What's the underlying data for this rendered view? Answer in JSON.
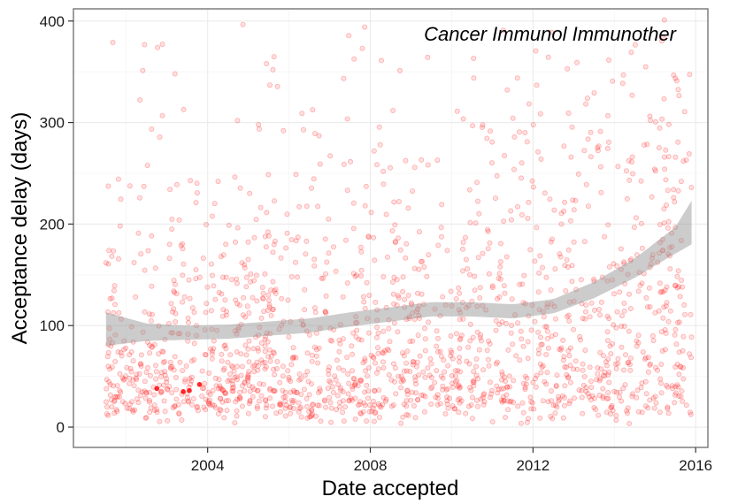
{
  "chart_data": {
    "type": "scatter",
    "title": "Cancer Immunol Immunother",
    "xlabel": "Date accepted",
    "ylabel": "Acceptance delay (days)",
    "x_ticks": [
      "2004",
      "2008",
      "2012",
      "2016"
    ],
    "y_ticks": [
      "0",
      "100",
      "200",
      "300",
      "400"
    ],
    "xlim": [
      2000.7,
      2016.3
    ],
    "ylim": [
      -20,
      412
    ],
    "grid": true,
    "point_color": "#ff0000",
    "point_count_estimate": 1800,
    "highlighted_points": [
      {
        "x": 2002.75,
        "y": 38
      },
      {
        "x": 2003.4,
        "y": 35
      },
      {
        "x": 2003.55,
        "y": 36
      },
      {
        "x": 2003.8,
        "y": 42
      }
    ],
    "series": [
      {
        "type": "smooth",
        "color": "#999999",
        "points": [
          {
            "x": 2001.5,
            "y": 95,
            "ymin": 80,
            "ymax": 113
          },
          {
            "x": 2002.5,
            "y": 93,
            "ymin": 85,
            "ymax": 102
          },
          {
            "x": 2003.5,
            "y": 93,
            "ymin": 86,
            "ymax": 100
          },
          {
            "x": 2004.5,
            "y": 94,
            "ymin": 87,
            "ymax": 101
          },
          {
            "x": 2005.5,
            "y": 97,
            "ymin": 90,
            "ymax": 104
          },
          {
            "x": 2006.5,
            "y": 100,
            "ymin": 93,
            "ymax": 107
          },
          {
            "x": 2007.5,
            "y": 106,
            "ymin": 99,
            "ymax": 113
          },
          {
            "x": 2008.5,
            "y": 111,
            "ymin": 104,
            "ymax": 118
          },
          {
            "x": 2009.5,
            "y": 116,
            "ymin": 109,
            "ymax": 123
          },
          {
            "x": 2010.5,
            "y": 116,
            "ymin": 109,
            "ymax": 123
          },
          {
            "x": 2011.5,
            "y": 114,
            "ymin": 107,
            "ymax": 121
          },
          {
            "x": 2012.5,
            "y": 119,
            "ymin": 112,
            "ymax": 126
          },
          {
            "x": 2013.5,
            "y": 135,
            "ymin": 127,
            "ymax": 143
          },
          {
            "x": 2014.5,
            "y": 156,
            "ymin": 147,
            "ymax": 166
          },
          {
            "x": 2015.5,
            "y": 184,
            "ymin": 171,
            "ymax": 197
          },
          {
            "x": 2015.9,
            "y": 199,
            "ymin": 180,
            "ymax": 223
          }
        ]
      }
    ]
  }
}
